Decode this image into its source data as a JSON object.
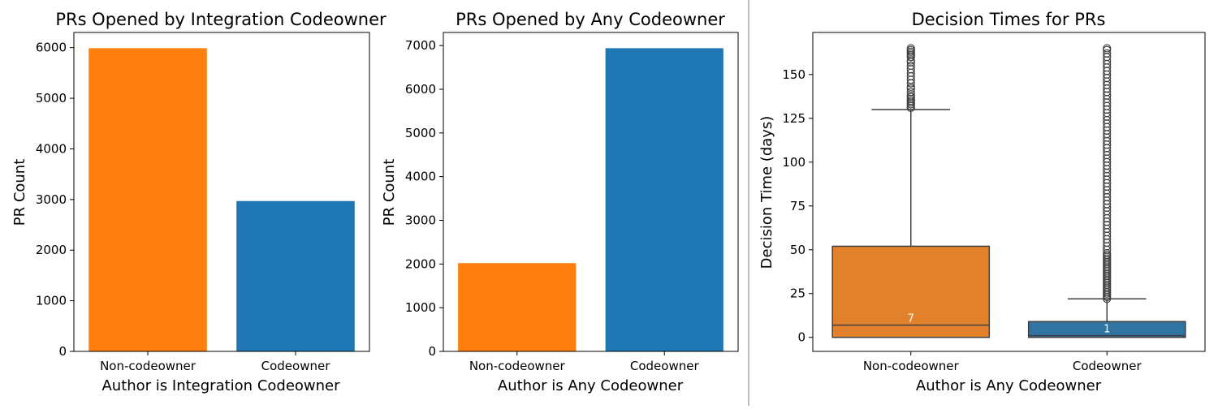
{
  "colors": {
    "orange": "#ff7f0e",
    "blue": "#1f77b4",
    "box_orange": "#e1812c",
    "box_blue": "#3274a1",
    "divider": "#bfbfbf"
  },
  "chart_data": [
    {
      "type": "bar",
      "title": "PRs Opened by Integration Codeowner",
      "xlabel": "Author is Integration Codeowner",
      "ylabel": "PR Count",
      "categories": [
        "Non-codeowner",
        "Codeowner"
      ],
      "values": [
        5990,
        2970
      ],
      "ylim": [
        0,
        6300
      ],
      "yticks": [
        "0",
        "1000",
        "2000",
        "3000",
        "4000",
        "5000",
        "6000"
      ],
      "grid": false
    },
    {
      "type": "bar",
      "title": "PRs Opened by Any Codeowner",
      "xlabel": "Author is Any Codeowner",
      "ylabel": "PR Count",
      "categories": [
        "Non-codeowner",
        "Codeowner"
      ],
      "values": [
        2020,
        6940
      ],
      "ylim": [
        0,
        7300
      ],
      "yticks": [
        "0",
        "1000",
        "2000",
        "3000",
        "4000",
        "5000",
        "6000",
        "7000"
      ],
      "grid": false
    },
    {
      "type": "box",
      "title": "Decision Times for PRs",
      "xlabel": "Author is Any Codeowner",
      "ylabel": "Decision Time (days)",
      "categories": [
        "Non-codeowner",
        "Codeowner"
      ],
      "ylim": [
        -8,
        174
      ],
      "yticks": [
        "0",
        "25",
        "50",
        "75",
        "100",
        "125",
        "150"
      ],
      "boxes": [
        {
          "name": "Non-codeowner",
          "min": 0,
          "q1": 0,
          "median": 7,
          "q3": 52,
          "whisker_high": 130,
          "median_label": "7",
          "outliers": [
            131,
            132,
            133,
            134,
            135,
            136,
            137,
            138,
            140,
            142,
            143,
            145,
            147,
            149,
            151,
            153,
            155,
            157,
            158,
            160,
            161,
            162,
            163,
            164,
            165
          ]
        },
        {
          "name": "Codeowner",
          "min": 0,
          "q1": 0,
          "median": 1,
          "q3": 9,
          "whisker_high": 22,
          "median_label": "1",
          "outliers": [
            22,
            23,
            24,
            25,
            26,
            27,
            28,
            29,
            30,
            31,
            32,
            33,
            34,
            35,
            36,
            37,
            38,
            39,
            40,
            41,
            42,
            43,
            44,
            45,
            46,
            47,
            48,
            50,
            52,
            54,
            56,
            58,
            60,
            62,
            64,
            66,
            68,
            70,
            72,
            74,
            76,
            78,
            80,
            82,
            84,
            86,
            88,
            90,
            92,
            94,
            96,
            98,
            100,
            102,
            104,
            106,
            108,
            110,
            112,
            114,
            116,
            118,
            120,
            122,
            124,
            126,
            128,
            130,
            132,
            134,
            136,
            138,
            140,
            142,
            144,
            146,
            148,
            150,
            152,
            154,
            156,
            158,
            160,
            162,
            164,
            165
          ]
        }
      ],
      "grid": false
    }
  ]
}
